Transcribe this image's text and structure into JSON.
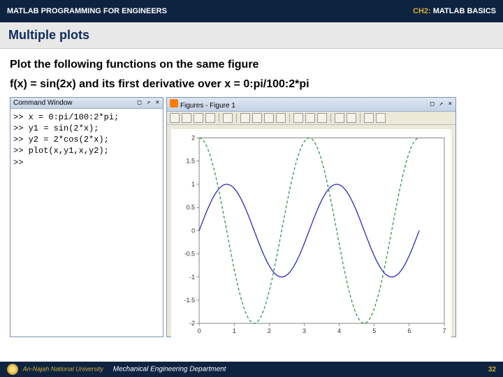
{
  "header": {
    "left": "MATLAB PROGRAMMING FOR ENGINEERS",
    "right_pre": "CH2: ",
    "right": "MATLAB BASICS"
  },
  "section_title": "Multiple plots",
  "desc_line1": "Plot the following functions on the same figure",
  "desc_line2": "f(x) = sin(2x) and its first derivative over x = 0:pi/100:2*pi",
  "cmd": {
    "title": "Command Window",
    "close": "□ ↗ ×",
    "lines": ">> x = 0:pi/100:2*pi;\n>> y1 = sin(2*x);\n>> y2 = 2*cos(2*x);\n>> plot(x,y1,x,y2);\n>> "
  },
  "fig": {
    "title": "Figures - Figure 1",
    "close": "□ ↗ ×"
  },
  "chart": {
    "type": "line",
    "xlim": [
      0,
      7
    ],
    "ylim": [
      -2,
      2
    ],
    "xticks": [
      0,
      1,
      2,
      3,
      4,
      5,
      6,
      7
    ],
    "yticks": [
      -2,
      -1.5,
      -1,
      -0.5,
      0,
      0.5,
      1,
      1.5,
      2
    ],
    "ytick_labels": [
      "-2",
      "-1.5",
      "-1",
      "-0.5",
      "0",
      "0.5",
      "1",
      "1.5",
      "2"
    ],
    "xtick_labels": [
      "0",
      "1",
      "2",
      "3",
      "4",
      "5",
      "6",
      "7"
    ],
    "series1": {
      "color": "#1a1abf",
      "formula": "sin(2x)",
      "amplitude": 1
    },
    "series2": {
      "color": "#1a8f3c",
      "formula": "2cos(2x)",
      "amplitude": 2,
      "dashed": true
    },
    "background": "#ffffff",
    "box_color": "#888888"
  },
  "footer": {
    "university": "An-Najah National University",
    "dept": "Mechanical Engineering Department",
    "page": "32"
  }
}
